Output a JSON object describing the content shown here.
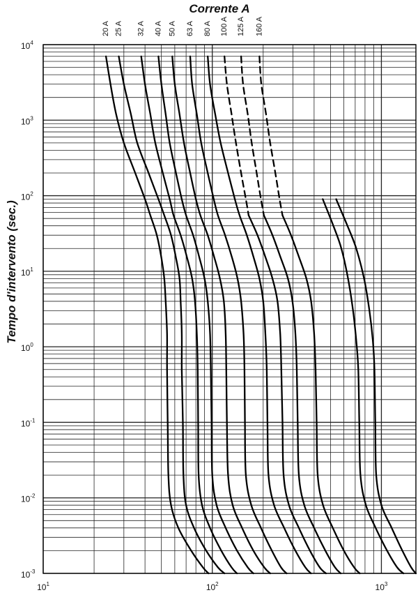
{
  "chart_data": {
    "type": "line",
    "title": "Corrente A",
    "ylabel": "Tempo d'intervento (sec.)",
    "xlabel": "",
    "x_scale": "log",
    "y_scale": "log",
    "xlim": [
      10,
      1600
    ],
    "ylim": [
      0.001,
      10000
    ],
    "grid": true,
    "x_ticks": [
      {
        "value": 10,
        "label": "10",
        "exp": "1"
      },
      {
        "value": 100,
        "label": "10",
        "exp": "2"
      },
      {
        "value": 1000,
        "label": "10",
        "exp": "3"
      }
    ],
    "y_ticks": [
      {
        "value": 10000,
        "label": "10",
        "exp": "4"
      },
      {
        "value": 1000,
        "label": "10",
        "exp": "3"
      },
      {
        "value": 100,
        "label": "10",
        "exp": "2"
      },
      {
        "value": 10,
        "label": "10",
        "exp": "1"
      },
      {
        "value": 1,
        "label": "10",
        "exp": "0"
      },
      {
        "value": 0.1,
        "label": "10",
        "exp": "-1"
      },
      {
        "value": 0.01,
        "label": "10",
        "exp": "-2"
      },
      {
        "value": 0.001,
        "label": "10",
        "exp": "-3"
      }
    ],
    "series": [
      {
        "name": "20 A",
        "points": [
          [
            23.5,
            7000
          ],
          [
            25,
            3000
          ],
          [
            27,
            1200
          ],
          [
            30,
            500
          ],
          [
            35,
            200
          ],
          [
            40,
            90
          ],
          [
            43,
            55
          ],
          [
            47,
            30
          ],
          [
            50,
            15
          ],
          [
            52,
            8
          ],
          [
            53,
            4
          ],
          [
            54,
            1.5
          ],
          [
            54,
            0.5
          ],
          [
            54.5,
            0.1
          ],
          [
            55,
            0.02
          ],
          [
            57,
            0.008
          ],
          [
            63,
            0.004
          ],
          [
            75,
            0.002
          ],
          [
            88,
            0.0012
          ],
          [
            95,
            0.001
          ]
        ]
      },
      {
        "name": "25 A",
        "points": [
          [
            28,
            7000
          ],
          [
            30,
            3000
          ],
          [
            33,
            1200
          ],
          [
            36,
            500
          ],
          [
            42,
            200
          ],
          [
            48,
            90
          ],
          [
            52,
            55
          ],
          [
            57,
            30
          ],
          [
            61,
            15
          ],
          [
            64,
            8
          ],
          [
            65,
            4
          ],
          [
            66,
            1.5
          ],
          [
            66,
            0.5
          ],
          [
            67,
            0.1
          ],
          [
            67.5,
            0.02
          ],
          [
            70,
            0.008
          ],
          [
            78,
            0.004
          ],
          [
            92,
            0.002
          ],
          [
            108,
            0.0012
          ],
          [
            118,
            0.001
          ]
        ]
      },
      {
        "name": "32 A",
        "points": [
          [
            38,
            7000
          ],
          [
            40,
            3000
          ],
          [
            43,
            1200
          ],
          [
            46,
            500
          ],
          [
            51,
            200
          ],
          [
            56,
            90
          ],
          [
            59,
            55
          ],
          [
            65,
            30
          ],
          [
            71,
            15
          ],
          [
            76,
            8
          ],
          [
            79,
            4
          ],
          [
            81,
            1.5
          ],
          [
            82,
            0.5
          ],
          [
            82.5,
            0.1
          ],
          [
            83,
            0.02
          ],
          [
            87,
            0.008
          ],
          [
            97,
            0.004
          ],
          [
            113,
            0.002
          ],
          [
            130,
            0.0012
          ],
          [
            140,
            0.001
          ]
        ]
      },
      {
        "name": "40 A",
        "points": [
          [
            48,
            7000
          ],
          [
            50,
            3000
          ],
          [
            53,
            1200
          ],
          [
            56,
            500
          ],
          [
            61,
            200
          ],
          [
            66,
            90
          ],
          [
            70,
            55
          ],
          [
            77,
            30
          ],
          [
            84,
            15
          ],
          [
            90,
            8
          ],
          [
            94,
            4
          ],
          [
            97,
            1.5
          ],
          [
            98,
            0.5
          ],
          [
            99,
            0.1
          ],
          [
            100,
            0.02
          ],
          [
            106,
            0.008
          ],
          [
            120,
            0.004
          ],
          [
            140,
            0.002
          ],
          [
            162,
            0.0012
          ],
          [
            175,
            0.001
          ]
        ]
      },
      {
        "name": "50 A",
        "points": [
          [
            58,
            7000
          ],
          [
            60,
            3000
          ],
          [
            64,
            1200
          ],
          [
            68,
            500
          ],
          [
            74,
            200
          ],
          [
            80,
            90
          ],
          [
            85,
            55
          ],
          [
            94,
            30
          ],
          [
            103,
            15
          ],
          [
            111,
            8
          ],
          [
            117,
            4
          ],
          [
            120,
            1.5
          ],
          [
            121,
            0.5
          ],
          [
            122,
            0.1
          ],
          [
            124,
            0.02
          ],
          [
            132,
            0.008
          ],
          [
            150,
            0.004
          ],
          [
            175,
            0.002
          ],
          [
            203,
            0.0012
          ],
          [
            220,
            0.001
          ]
        ]
      },
      {
        "name": "63 A",
        "points": [
          [
            74,
            7000
          ],
          [
            76,
            3000
          ],
          [
            81,
            1200
          ],
          [
            86,
            500
          ],
          [
            94,
            200
          ],
          [
            102,
            90
          ],
          [
            108,
            55
          ],
          [
            119,
            30
          ],
          [
            131,
            15
          ],
          [
            141,
            8
          ],
          [
            148,
            4
          ],
          [
            153,
            1.5
          ],
          [
            155,
            0.5
          ],
          [
            156,
            0.1
          ],
          [
            158,
            0.02
          ],
          [
            170,
            0.008
          ],
          [
            194,
            0.004
          ],
          [
            225,
            0.002
          ],
          [
            255,
            0.0012
          ],
          [
            275,
            0.001
          ]
        ]
      },
      {
        "name": "80 A",
        "points": [
          [
            94,
            7000
          ],
          [
            97,
            3000
          ],
          [
            104,
            1200
          ],
          [
            112,
            500
          ],
          [
            124,
            200
          ],
          [
            136,
            90
          ],
          [
            145,
            55
          ],
          [
            160,
            30
          ],
          [
            176,
            15
          ],
          [
            190,
            8
          ],
          [
            200,
            4
          ],
          [
            206,
            1.5
          ],
          [
            210,
            0.5
          ],
          [
            212,
            0.1
          ],
          [
            215,
            0.02
          ],
          [
            232,
            0.008
          ],
          [
            266,
            0.004
          ],
          [
            310,
            0.002
          ],
          [
            355,
            0.0012
          ],
          [
            383,
            0.001
          ]
        ]
      },
      {
        "name": "100 A",
        "points": [
          [
            118,
            7000
          ],
          [
            122,
            3000
          ],
          [
            130,
            1200
          ],
          [
            138,
            500
          ],
          [
            148,
            200
          ],
          [
            158,
            90
          ],
          [
            164,
            55
          ]
        ],
        "dashed": true
      },
      {
        "name": "100 A",
        "points": [
          [
            164,
            55
          ],
          [
            185,
            30
          ],
          [
            207,
            15
          ],
          [
            227,
            8
          ],
          [
            243,
            4
          ],
          [
            252,
            1.5
          ],
          [
            256,
            0.5
          ],
          [
            260,
            0.1
          ],
          [
            264,
            0.02
          ],
          [
            284,
            0.008
          ],
          [
            325,
            0.004
          ],
          [
            378,
            0.002
          ],
          [
            432,
            0.0012
          ],
          [
            470,
            0.001
          ]
        ]
      },
      {
        "name": "125 A",
        "points": [
          [
            148,
            7000
          ],
          [
            152,
            3000
          ],
          [
            162,
            1200
          ],
          [
            171,
            500
          ],
          [
            183,
            200
          ],
          [
            194,
            90
          ],
          [
            202,
            55
          ]
        ],
        "dashed": true
      },
      {
        "name": "125 A",
        "points": [
          [
            202,
            55
          ],
          [
            227,
            30
          ],
          [
            254,
            15
          ],
          [
            280,
            8
          ],
          [
            298,
            4
          ],
          [
            310,
            1.5
          ],
          [
            316,
            0.5
          ],
          [
            320,
            0.1
          ],
          [
            325,
            0.02
          ],
          [
            350,
            0.008
          ],
          [
            400,
            0.004
          ],
          [
            466,
            0.002
          ],
          [
            532,
            0.0012
          ],
          [
            575,
            0.001
          ]
        ]
      },
      {
        "name": "160 A",
        "points": [
          [
            190,
            7000
          ],
          [
            195,
            3000
          ],
          [
            208,
            1200
          ],
          [
            220,
            500
          ],
          [
            236,
            200
          ],
          [
            250,
            90
          ],
          [
            260,
            55
          ]
        ],
        "dashed": true
      },
      {
        "name": "160 A",
        "points": [
          [
            260,
            55
          ],
          [
            292,
            30
          ],
          [
            327,
            15
          ],
          [
            360,
            8
          ],
          [
            384,
            4
          ],
          [
            400,
            1.5
          ],
          [
            408,
            0.5
          ],
          [
            414,
            0.1
          ],
          [
            420,
            0.02
          ],
          [
            452,
            0.008
          ],
          [
            516,
            0.004
          ],
          [
            600,
            0.002
          ],
          [
            690,
            0.0012
          ],
          [
            745,
            0.001
          ]
        ]
      },
      {
        "name": "",
        "points": [
          [
            450,
            90
          ],
          [
            520,
            40
          ],
          [
            580,
            20
          ],
          [
            635,
            8
          ],
          [
            680,
            3
          ],
          [
            710,
            1.2
          ],
          [
            730,
            0.5
          ],
          [
            740,
            0.1
          ],
          [
            752,
            0.02
          ],
          [
            810,
            0.008
          ],
          [
            925,
            0.004
          ],
          [
            1080,
            0.002
          ],
          [
            1240,
            0.0012
          ],
          [
            1350,
            0.001
          ]
        ]
      },
      {
        "name": "",
        "points": [
          [
            540,
            90
          ],
          [
            630,
            40
          ],
          [
            710,
            20
          ],
          [
            790,
            8
          ],
          [
            850,
            3
          ],
          [
            890,
            1.2
          ],
          [
            910,
            0.5
          ],
          [
            920,
            0.1
          ],
          [
            932,
            0.02
          ],
          [
            1000,
            0.008
          ],
          [
            1150,
            0.004
          ],
          [
            1330,
            0.002
          ],
          [
            1500,
            0.0012
          ],
          [
            1600,
            0.001
          ]
        ]
      }
    ],
    "curve_labels": [
      "20 A",
      "25 A",
      "32 A",
      "40 A",
      "50 A",
      "63 A",
      "80 A",
      "100 A",
      "125 A",
      "160 A"
    ],
    "curve_label_x": [
      23.5,
      28,
      38,
      48,
      58,
      74,
      94,
      118,
      148,
      190
    ]
  }
}
